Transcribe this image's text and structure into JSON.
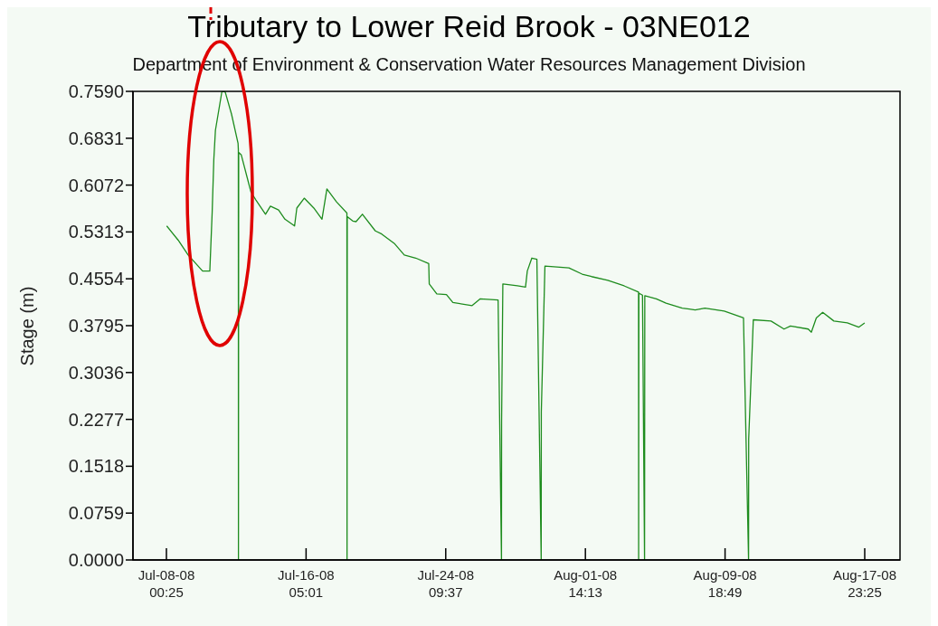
{
  "chart_data": {
    "type": "line",
    "title": "Tributary to Lower Reid Brook - 03NE012",
    "subtitle": "Department of Environment & Conservation Water Resources Management Division",
    "ylabel": "Stage (m)",
    "xlim": [
      "--07-06T01:20",
      "--08-20T01:05"
    ],
    "xticks": [
      {
        "value": "--07-08T00:25",
        "label": "Jul-08-08\n00:25"
      },
      {
        "value": "--07-16T05:01",
        "label": "Jul-16-08\n05:01"
      },
      {
        "value": "--07-24T09:37",
        "label": "Jul-24-08\n09:37"
      },
      {
        "value": "--08-01T14:13",
        "label": "Aug-01-08\n14:13"
      },
      {
        "value": "--08-09T18:49",
        "label": "Aug-09-08\n18:49"
      },
      {
        "value": "--08-17T23:25",
        "label": "Aug-17-08\n23:25"
      }
    ],
    "ylim": [
      0,
      0.759
    ],
    "yticks": [
      {
        "value": 0,
        "label": "0.0000"
      },
      {
        "value": 0.0759,
        "label": "0.0759"
      },
      {
        "value": 0.1518,
        "label": "0.1518"
      },
      {
        "value": 0.2277,
        "label": "0.2277"
      },
      {
        "value": 0.3036,
        "label": "0.3036"
      },
      {
        "value": 0.3795,
        "label": "0.3795"
      },
      {
        "value": 0.4554,
        "label": "0.4554"
      },
      {
        "value": 0.5313,
        "label": "0.5313"
      },
      {
        "value": 0.6072,
        "label": "0.6072"
      },
      {
        "value": 0.6831,
        "label": "0.6831"
      },
      {
        "value": 0.759,
        "label": "0.7590"
      }
    ],
    "grid": false,
    "marker": "none",
    "line_style": "solid",
    "series": [
      {
        "color": "#1e8c1e",
        "x": [
          "--07-08T00:50",
          "--07-08T17:00",
          "--07-09T07:00",
          "--07-10T03:20",
          "--07-10T13:30",
          "--07-10T16:50",
          "--07-10T19:10",
          "--07-10T21:25",
          "--07-11T06:35",
          "--07-11T11:10",
          "--07-11T20:05",
          "--07-12T05:15",
          "--07-12T05:40",
          "--07-12T05:50",
          "--07-12T06:00",
          "--07-12T06:10",
          "--07-12T09:50",
          "--07-12T23:25",
          "--07-13T06:25",
          "--07-13T19:55",
          "--07-14T02:50",
          "--07-14T14:20",
          "--07-14T23:15",
          "--07-15T12:50",
          "--07-15T16:00",
          "--07-16T02:25",
          "--07-16T15:55",
          "--07-17T03:25",
          "--07-17T10:20",
          "--07-17T23:50",
          "--07-18T14:30",
          "--07-18T14:40",
          "--07-18T14:50",
          "--07-18T15:00",
          "--07-18T22:45",
          "--07-19T03:20",
          "--07-19T12:20",
          "--07-20T06:30",
          "--07-20T15:25",
          "--07-21T09:50",
          "--07-21T23:15",
          "--07-22T15:20",
          "--07-23T09:40",
          "--07-23T10:25",
          "--07-23T21:00",
          "--07-24T10:35",
          "--07-24T19:40",
          "--07-25T22:45",
          "--07-26T10:15",
          "--07-27T11:20",
          "--07-27T16:05",
          "--07-27T16:15",
          "--07-27T18:00",
          "--07-28T14:25",
          "--07-29T01:55",
          "--07-29T04:25",
          "--07-29T10:50",
          "--07-29T17:55",
          "--07-30T00:00",
          "--07-30T00:10",
          "--07-30T05:15",
          "--07-31T15:00",
          "--08-01T09:35",
          "--08-01T22:50",
          "--08-02T21:45",
          "--08-03T20:40",
          "--08-04T17:00",
          "--08-04T17:10",
          "--08-04T17:20",
          "--08-04T17:30",
          "--08-04T22:35",
          "--08-05T01:30",
          "--08-05T01:40",
          "--08-05T01:50",
          "--08-05T18:05",
          "--08-06T07:45",
          "--08-07T06:30",
          "--08-08T00:45",
          "--08-08T14:25",
          "--08-09T17:40",
          "--08-10T20:45",
          "--08-11T03:55",
          "--08-11T04:05",
          "--08-11T10:35",
          "--08-12T11:30",
          "--08-13T05:50",
          "--08-13T14:55",
          "--08-14T15:55",
          "--08-14T20:15",
          "--08-15T03:15",
          "--08-15T12:15",
          "--08-16T04:00",
          "--08-16T22:55",
          "--08-17T14:55",
          "--08-17T23:20"
        ],
        "values": [
          0.541,
          0.518,
          0.494,
          0.468,
          0.468,
          0.563,
          0.649,
          0.696,
          0.759,
          0.758,
          0.722,
          0.675,
          0.665,
          0,
          0.33,
          0.66,
          0.656,
          0.596,
          0.583,
          0.56,
          0.573,
          0.567,
          0.552,
          0.541,
          0.57,
          0.586,
          0.57,
          0.552,
          0.601,
          0.58,
          0.562,
          0,
          0.28,
          0.556,
          0.549,
          0.548,
          0.56,
          0.533,
          0.528,
          0.512,
          0.494,
          0.489,
          0.48,
          0.447,
          0.431,
          0.43,
          0.417,
          0.412,
          0.423,
          0.421,
          0,
          0.225,
          0.447,
          0.444,
          0.442,
          0.468,
          0.489,
          0.487,
          0,
          0.24,
          0.476,
          0.473,
          0.463,
          0.459,
          0.453,
          0.444,
          0.434,
          0,
          0.217,
          0.432,
          0.429,
          0,
          0.212,
          0.428,
          0.423,
          0.416,
          0.408,
          0.405,
          0.408,
          0.403,
          0.392,
          0,
          0.196,
          0.389,
          0.387,
          0.374,
          0.379,
          0.374,
          0.369,
          0.392,
          0.401,
          0.387,
          0.384,
          0.377,
          0.384
        ]
      }
    ]
  }
}
